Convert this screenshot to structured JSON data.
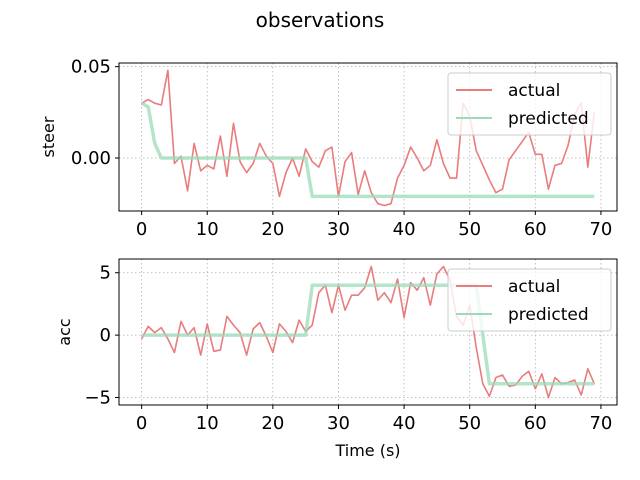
{
  "chart_data": {
    "title": "observations",
    "subplots": [
      {
        "type": "line",
        "ylabel": "steer",
        "xlabel": "",
        "xlim": [
          -3.45,
          72.45
        ],
        "ylim": [
          -0.029,
          0.052
        ],
        "xticks": [
          0,
          10,
          20,
          30,
          40,
          50,
          60,
          70
        ],
        "yticks": [
          -0.05,
          0.0,
          0.05
        ],
        "ytick_labels": [
          "",
          "0.00",
          "0.05"
        ],
        "grid": true,
        "legend_position": "top-right",
        "series": [
          {
            "name": "actual",
            "color": "#e97c7c",
            "x": [
              0,
              1,
              2,
              3,
              4,
              5,
              6,
              7,
              8,
              9,
              10,
              11,
              12,
              13,
              14,
              15,
              16,
              17,
              18,
              19,
              20,
              21,
              22,
              23,
              24,
              25,
              26,
              27,
              28,
              29,
              30,
              31,
              32,
              33,
              34,
              35,
              36,
              37,
              38,
              39,
              40,
              41,
              42,
              43,
              44,
              45,
              46,
              47,
              48,
              49,
              50,
              51,
              52,
              53,
              54,
              55,
              56,
              57,
              58,
              59,
              60,
              61,
              62,
              63,
              64,
              65,
              66,
              67,
              68,
              69
            ],
            "y": [
              0.03,
              0.032,
              0.03,
              0.029,
              0.048,
              -0.003,
              0.001,
              -0.018,
              0.008,
              -0.007,
              -0.004,
              -0.006,
              0.012,
              -0.01,
              0.019,
              -0.002,
              -0.008,
              -0.003,
              0.008,
              0.001,
              -0.003,
              -0.021,
              -0.008,
              0.0,
              -0.01,
              0.005,
              -0.002,
              -0.005,
              0.004,
              0.006,
              -0.021,
              -0.002,
              0.003,
              -0.02,
              -0.007,
              -0.019,
              -0.025,
              -0.026,
              -0.025,
              -0.011,
              -0.004,
              0.006,
              0.0,
              -0.007,
              -0.004,
              0.01,
              -0.003,
              -0.011,
              -0.011,
              0.03,
              0.023,
              0.004,
              -0.004,
              -0.012,
              -0.019,
              -0.017,
              -0.001,
              0.004,
              0.009,
              0.014,
              0.002,
              0.002,
              -0.017,
              -0.004,
              -0.003,
              0.007,
              0.024,
              0.03,
              -0.005,
              0.025
            ]
          },
          {
            "name": "predicted",
            "color": "#9bdcb8",
            "x": [
              0,
              1,
              2,
              3,
              4,
              5,
              6,
              7,
              8,
              9,
              10,
              11,
              12,
              13,
              14,
              15,
              16,
              17,
              18,
              19,
              20,
              21,
              22,
              23,
              24,
              25,
              26,
              27,
              28,
              29,
              30,
              31,
              32,
              33,
              34,
              35,
              36,
              37,
              38,
              39,
              40,
              41,
              42,
              43,
              44,
              45,
              46,
              47,
              48,
              49,
              50,
              51,
              52,
              53,
              54,
              55,
              56,
              57,
              58,
              59,
              60,
              61,
              62,
              63,
              64,
              65,
              66,
              67,
              68,
              69
            ],
            "y": [
              0.03,
              0.028,
              0.008,
              0.0,
              0.0,
              0.0,
              0.0,
              0.0,
              0.0,
              0.0,
              0.0,
              0.0,
              0.0,
              0.0,
              0.0,
              0.0,
              0.0,
              0.0,
              0.0,
              0.0,
              0.0,
              0.0,
              0.0,
              0.0,
              0.0,
              0.0,
              -0.021,
              -0.021,
              -0.021,
              -0.021,
              -0.021,
              -0.021,
              -0.021,
              -0.021,
              -0.021,
              -0.021,
              -0.021,
              -0.021,
              -0.021,
              -0.021,
              -0.021,
              -0.021,
              -0.021,
              -0.021,
              -0.021,
              -0.021,
              -0.021,
              -0.021,
              -0.021,
              -0.021,
              -0.021,
              -0.021,
              -0.021,
              -0.021,
              -0.021,
              -0.021,
              -0.021,
              -0.021,
              -0.021,
              -0.021,
              -0.021,
              -0.021,
              -0.021,
              -0.021,
              -0.021,
              -0.021,
              -0.021,
              -0.021,
              -0.021,
              -0.021
            ]
          }
        ]
      },
      {
        "type": "line",
        "ylabel": "acc",
        "xlabel": "Time (s)",
        "xlim": [
          -3.45,
          72.45
        ],
        "ylim": [
          -5.6,
          6.1
        ],
        "xticks": [
          0,
          10,
          20,
          30,
          40,
          50,
          60,
          70
        ],
        "yticks": [
          -5,
          0,
          5
        ],
        "ytick_labels": [
          "−5",
          "0",
          "5"
        ],
        "grid": true,
        "legend_position": "top-right",
        "series": [
          {
            "name": "actual",
            "color": "#e97c7c",
            "x": [
              0,
              1,
              2,
              3,
              4,
              5,
              6,
              7,
              8,
              9,
              10,
              11,
              12,
              13,
              14,
              15,
              16,
              17,
              18,
              19,
              20,
              21,
              22,
              23,
              24,
              25,
              26,
              27,
              28,
              29,
              30,
              31,
              32,
              33,
              34,
              35,
              36,
              37,
              38,
              39,
              40,
              41,
              42,
              43,
              44,
              45,
              46,
              47,
              48,
              49,
              50,
              51,
              52,
              53,
              54,
              55,
              56,
              57,
              58,
              59,
              60,
              61,
              62,
              63,
              64,
              65,
              66,
              67,
              68,
              69
            ],
            "y": [
              -0.3,
              0.7,
              0.2,
              0.6,
              -0.3,
              -1.4,
              1.1,
              0.0,
              0.6,
              -1.6,
              0.9,
              -1.3,
              -1.2,
              1.5,
              0.8,
              0.2,
              -1.6,
              0.5,
              1.0,
              -0.1,
              -1.4,
              0.9,
              0.3,
              -0.6,
              1.2,
              0.3,
              0.8,
              3.4,
              4.0,
              1.8,
              4.0,
              2.0,
              3.2,
              3.2,
              3.8,
              5.5,
              2.8,
              3.4,
              2.6,
              4.5,
              1.4,
              4.2,
              3.6,
              4.6,
              2.4,
              4.9,
              5.5,
              4.4,
              1.5,
              0.8,
              2.4,
              -1.0,
              -3.9,
              -4.9,
              -3.4,
              -3.2,
              -4.1,
              -4.0,
              -3.3,
              -2.9,
              -4.3,
              -3.1,
              -5.0,
              -3.4,
              -3.9,
              -3.8,
              -3.6,
              -4.8,
              -2.7,
              -3.9
            ]
          },
          {
            "name": "predicted",
            "color": "#9bdcb8",
            "x": [
              0,
              1,
              2,
              3,
              4,
              5,
              6,
              7,
              8,
              9,
              10,
              11,
              12,
              13,
              14,
              15,
              16,
              17,
              18,
              19,
              20,
              21,
              22,
              23,
              24,
              25,
              26,
              27,
              28,
              29,
              30,
              31,
              32,
              33,
              34,
              35,
              36,
              37,
              38,
              39,
              40,
              41,
              42,
              43,
              44,
              45,
              46,
              47,
              48,
              49,
              50,
              51,
              52,
              53,
              54,
              55,
              56,
              57,
              58,
              59,
              60,
              61,
              62,
              63,
              64,
              65,
              66,
              67,
              68,
              69
            ],
            "y": [
              0,
              0,
              0,
              0,
              0,
              0,
              0,
              0,
              0,
              0,
              0,
              0,
              0,
              0,
              0,
              0,
              0,
              0,
              0,
              0,
              0,
              0,
              0,
              0,
              0,
              0,
              4,
              4,
              4,
              4,
              4,
              4,
              4,
              4,
              4,
              4,
              4,
              4,
              4,
              4,
              4,
              4,
              4,
              4,
              4,
              4,
              4,
              4,
              4,
              4,
              4,
              4,
              0,
              -3.9,
              -3.9,
              -3.9,
              -3.9,
              -3.9,
              -3.9,
              -3.9,
              -3.9,
              -3.9,
              -3.9,
              -3.9,
              -3.9,
              -3.9,
              -3.9,
              -3.9,
              -3.9,
              -3.9
            ]
          }
        ]
      }
    ]
  }
}
